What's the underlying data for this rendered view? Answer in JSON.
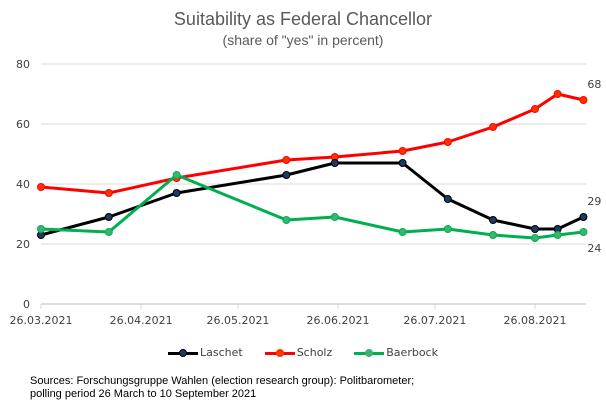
{
  "chart_data": {
    "type": "line",
    "title": "Suitability as Federal Chancellor",
    "subtitle": "(share of \"yes\" in percent)",
    "xlabel": "",
    "ylabel": "",
    "ylim": [
      0,
      80
    ],
    "yticks": [
      0,
      20,
      40,
      60,
      80
    ],
    "grid": true,
    "legend_position": "bottom",
    "x_axis": {
      "start": "2021-03-26",
      "end": "2021-09-10",
      "tick_labels": [
        "26.03.2021",
        "26.04.2021",
        "26.05.2021",
        "26.06.2021",
        "26.07.2021",
        "26.08.2021"
      ],
      "tick_dates": [
        "2021-03-26",
        "2021-04-26",
        "2021-05-26",
        "2021-06-26",
        "2021-07-26",
        "2021-08-26"
      ]
    },
    "x": [
      "2021-03-26",
      "2021-04-16",
      "2021-05-07",
      "2021-06-10",
      "2021-06-25",
      "2021-07-16",
      "2021-07-30",
      "2021-08-13",
      "2021-08-26",
      "2021-09-02",
      "2021-09-10"
    ],
    "series": [
      {
        "name": "Laschet",
        "color": "#000000",
        "marker_color": "#1f3864",
        "values": [
          23,
          29,
          37,
          43,
          47,
          47,
          35,
          28,
          25,
          25,
          29
        ],
        "end_label": "29"
      },
      {
        "name": "Scholz",
        "color": "#ff0000",
        "marker_color": "#ff3300",
        "values": [
          39,
          37,
          42,
          48,
          49,
          51,
          54,
          59,
          65,
          70,
          68
        ],
        "end_label": "68"
      },
      {
        "name": "Baerbock",
        "color": "#00b050",
        "marker_color": "#3cb371",
        "values": [
          25,
          24,
          43,
          28,
          29,
          24,
          25,
          23,
          22,
          23,
          24
        ],
        "end_label": "24"
      }
    ]
  },
  "legend": [
    {
      "label": "Laschet",
      "color": "#000000",
      "marker": "#1f3864"
    },
    {
      "label": "Scholz",
      "color": "#ff0000",
      "marker": "#ff3300"
    },
    {
      "label": "Baerbock",
      "color": "#00b050",
      "marker": "#3cb371"
    }
  ],
  "sources": {
    "line1": "Sources: Forschungsgruppe Wahlen (election research group): Politbarometer;",
    "line2": "polling period 26 March to 10 September 2021"
  }
}
